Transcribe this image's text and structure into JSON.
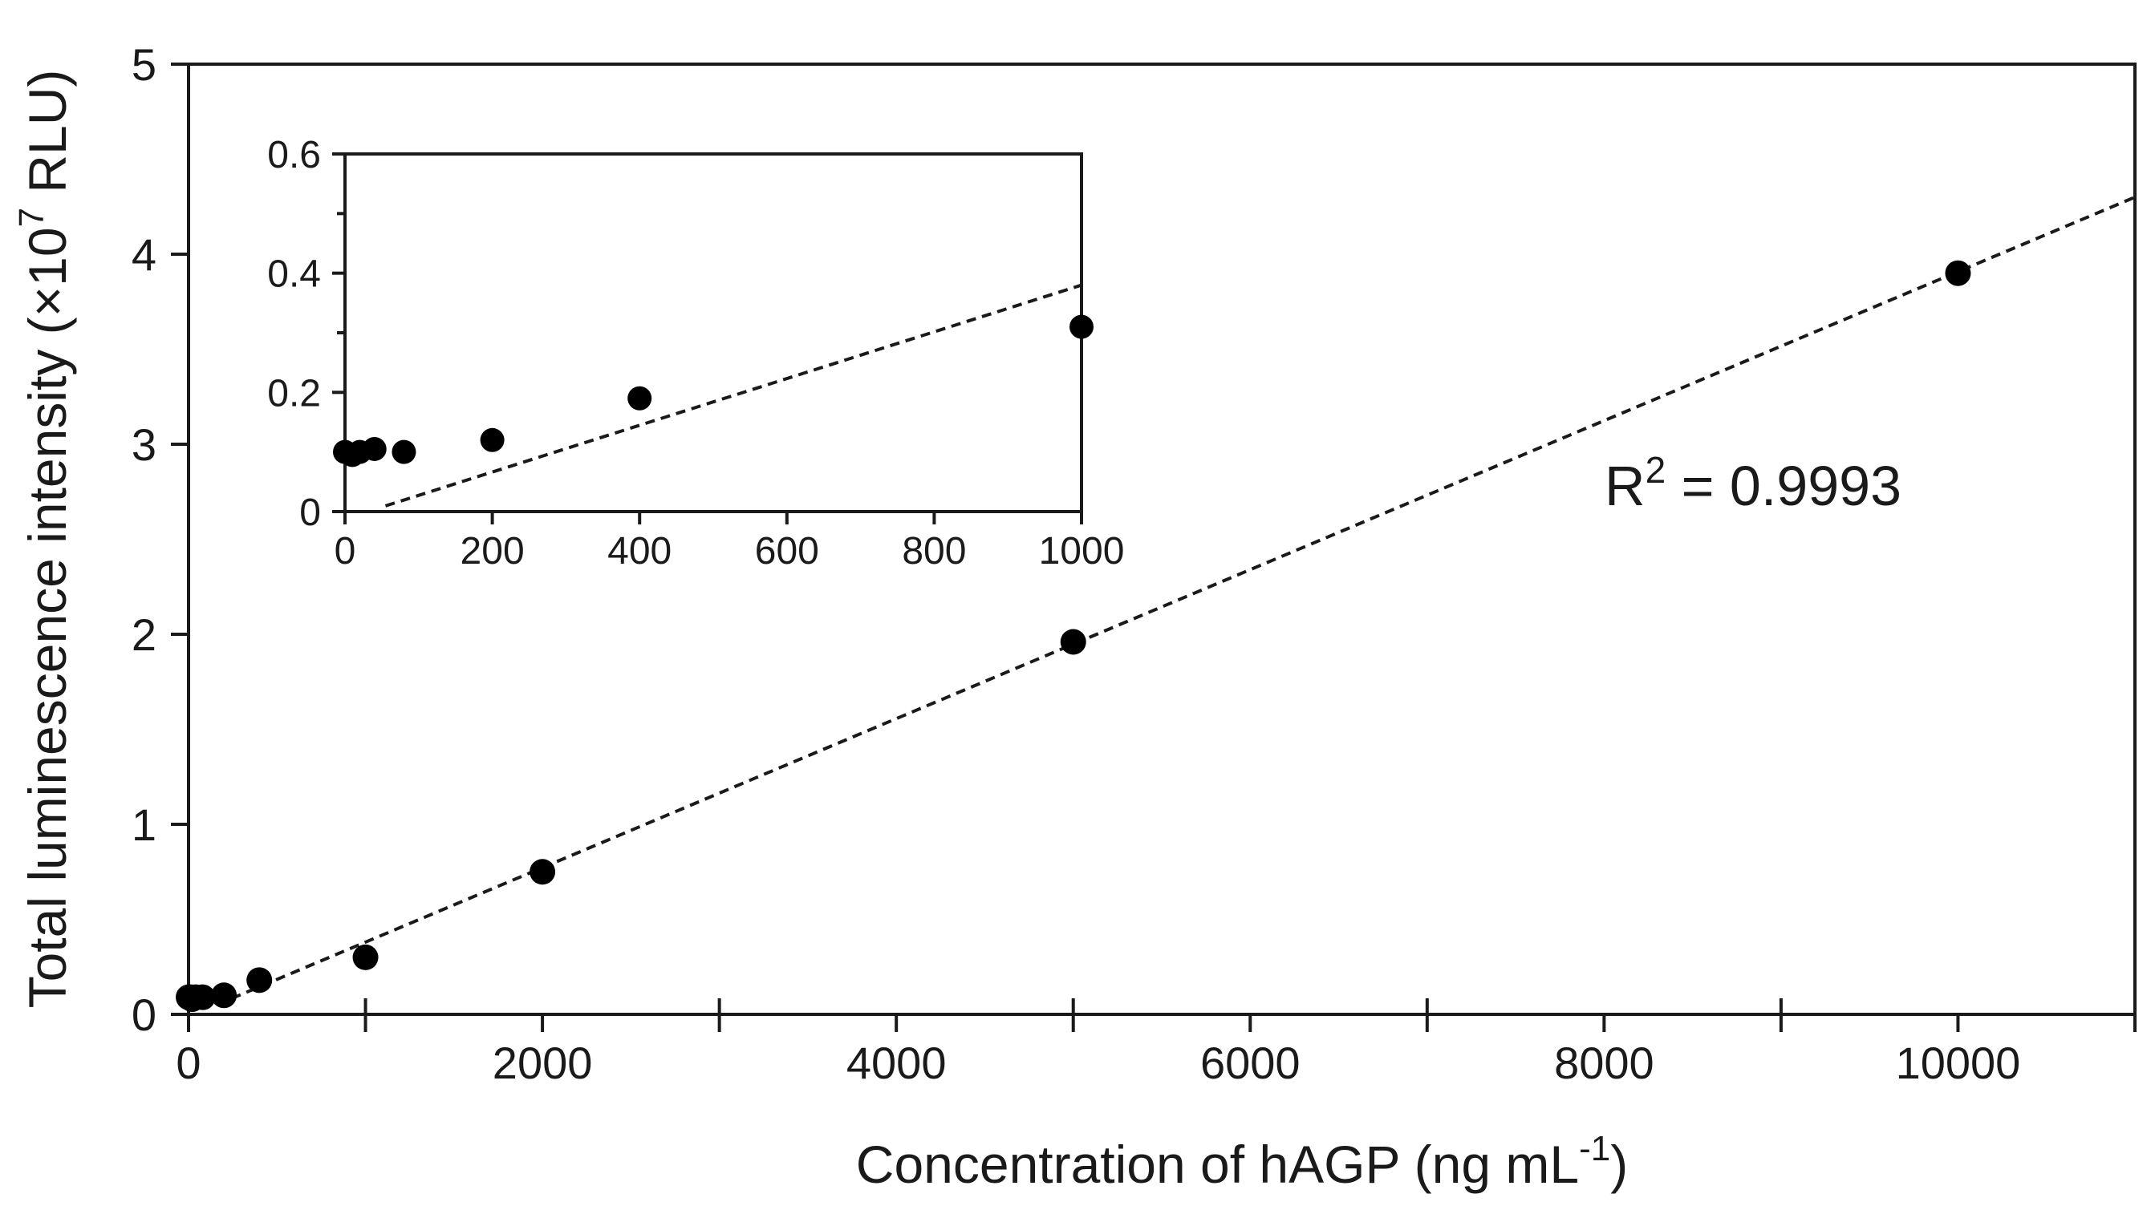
{
  "chart_data": [
    {
      "id": "main",
      "type": "scatter",
      "xlabel": "Concentration of hAGP (ng mL",
      "xlabel_sup": "-1",
      "xlabel_suffix": ")",
      "ylabel": "Total luminescence intensity (×10",
      "ylabel_sup": "7",
      "ylabel_suffix": " RLU)",
      "xlim": [
        0,
        11000
      ],
      "ylim": [
        0,
        5
      ],
      "xticks_major": [
        0,
        2000,
        4000,
        6000,
        8000,
        10000
      ],
      "xtick_labels": [
        "0",
        "2000",
        "4000",
        "6000",
        "8000",
        "10000"
      ],
      "xticks_minor": [
        1000,
        3000,
        5000,
        7000,
        9000,
        11000
      ],
      "yticks": [
        0,
        1,
        2,
        3,
        4,
        5
      ],
      "ytick_labels": [
        "0",
        "1",
        "2",
        "3",
        "4",
        "5"
      ],
      "x": [
        0,
        10,
        20,
        40,
        80,
        200,
        400,
        1000,
        2000,
        5000,
        10000
      ],
      "y": [
        0.09,
        0.09,
        0.08,
        0.09,
        0.09,
        0.1,
        0.18,
        0.3,
        0.75,
        1.96,
        3.9
      ],
      "fit": {
        "slope": 0.000392,
        "intercept": -0.012,
        "x_range": [
          160,
          11000
        ]
      },
      "annotation": {
        "text": "R",
        "sup": "2",
        "suffix": " = 0.9993"
      }
    },
    {
      "id": "inset",
      "type": "scatter",
      "xlim": [
        0,
        1000
      ],
      "ylim": [
        0,
        0.6
      ],
      "xticks": [
        0,
        200,
        400,
        600,
        800,
        1000
      ],
      "xtick_labels": [
        "0",
        "200",
        "400",
        "600",
        "800",
        "1000"
      ],
      "yticks_major": [
        0,
        0.2,
        0.4,
        0.6
      ],
      "ytick_labels": [
        "0",
        "0.2",
        "0.4",
        "0.6"
      ],
      "yticks_minor": [
        0.1,
        0.3,
        0.5
      ],
      "x": [
        0,
        10,
        20,
        40,
        80,
        200,
        400,
        1000
      ],
      "y": [
        0.1,
        0.095,
        0.1,
        0.105,
        0.1,
        0.12,
        0.19,
        0.31
      ],
      "fit": {
        "slope": 0.000392,
        "intercept": -0.012,
        "x_range": [
          55,
          1000
        ]
      }
    }
  ]
}
